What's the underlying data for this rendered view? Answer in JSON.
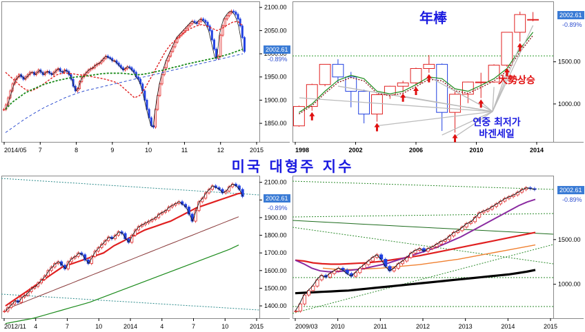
{
  "title_center": "미국 대형주 지수",
  "colors": {
    "up": "#e02020",
    "down": "#2040e0",
    "ma_red": "#e02020",
    "ma_green": "#1a8a1a",
    "ma_blue": "#3050d0",
    "price_box": "#3a7bd5",
    "title": "#1a1ae0",
    "annot_red": "#e01010"
  },
  "panels": {
    "top_left": {
      "last_price": "2002.61",
      "change": "-0.89%",
      "y_ticks": [
        "2100.00",
        "2050.00",
        "2000.00",
        "1950.00",
        "1900.00",
        "1850.00"
      ],
      "x_ticks": [
        "2014/05",
        "7",
        "8",
        "9",
        "10",
        "11",
        "12",
        "2015"
      ]
    },
    "top_right": {
      "title": "年棒",
      "last_price": "2002.61",
      "change": "-0.89%",
      "y_ticks": [
        "1500.00",
        "1000.00"
      ],
      "x_ticks": [
        "1998",
        "2002",
        "2006",
        "2010",
        "2014"
      ],
      "annotation_lows": "연중 최저가\n바겐세일",
      "annotation_trend": "大勢상승"
    },
    "bottom_left": {
      "last_price": "2002.61",
      "change": "-0.89%",
      "y_ticks": [
        "2100.00",
        "2000.00",
        "1900.00",
        "1800.00",
        "1700.00",
        "1600.00",
        "1500.00",
        "1400.00"
      ],
      "x_ticks": [
        "2012/11",
        "4",
        "7",
        "10",
        "2014",
        "4",
        "7",
        "10",
        "2015"
      ]
    },
    "bottom_right": {
      "last_price": "2002.61",
      "change": "-0.89%",
      "y_ticks": [
        "1500.00",
        "1000.00"
      ],
      "x_ticks": [
        "2009/03",
        "2010",
        "2011",
        "2012",
        "2013",
        "2014",
        "2015"
      ]
    }
  },
  "chart_data": [
    {
      "type": "line",
      "name": "top_left",
      "ylim": [
        1810,
        2110
      ],
      "close": [
        1880,
        1890,
        1905,
        1920,
        1935,
        1945,
        1950,
        1955,
        1950,
        1945,
        1950,
        1955,
        1960,
        1960,
        1955,
        1960,
        1965,
        1960,
        1955,
        1960,
        1962,
        1958,
        1955,
        1960,
        1965,
        1968,
        1962,
        1960,
        1965,
        1962,
        1955,
        1945,
        1930,
        1920,
        1925,
        1940,
        1950,
        1955,
        1960,
        1965,
        1968,
        1970,
        1975,
        1978,
        1980,
        1985,
        1990,
        1995,
        1992,
        1990,
        1985,
        1985,
        1980,
        1975,
        1970,
        1965,
        1968,
        1972,
        1970,
        1965,
        1960,
        1950,
        1945,
        1935,
        1920,
        1900,
        1880,
        1862,
        1845,
        1842,
        1880,
        1910,
        1935,
        1955,
        1970,
        1985,
        1995,
        2005,
        2015,
        2025,
        2035,
        2040,
        2045,
        2050,
        2055,
        2060,
        2065,
        2070,
        2068,
        2065,
        2070,
        2075,
        2072,
        2068,
        2060,
        2050,
        2030,
        2010,
        1990,
        1995,
        2040,
        2060,
        2075,
        2082,
        2088,
        2092,
        2090,
        2085,
        2075,
        2060,
        2035,
        2005
      ],
      "ma_red": [
        1960,
        1950,
        1940,
        1930,
        1922,
        1920,
        1925,
        1932,
        1940,
        1948,
        1955,
        1958,
        1958,
        1957,
        1955,
        1954,
        1952,
        1950,
        1948,
        1946,
        1943,
        1940,
        1935,
        1925,
        1915,
        1905,
        1910,
        1925,
        1945,
        1965,
        1985,
        2005,
        2020,
        2030,
        2040,
        2048,
        2055,
        2060,
        2063,
        2060,
        2055,
        2050,
        2055,
        2062,
        2068,
        2070,
        2060
      ],
      "ma_green": [
        1880,
        1895,
        1905,
        1915,
        1922,
        1928,
        1934,
        1938,
        1942,
        1945,
        1948,
        1950,
        1951,
        1953,
        1955,
        1957,
        1958,
        1958,
        1958,
        1957,
        1955,
        1955,
        1957,
        1960,
        1963,
        1966,
        1970,
        1973,
        1977,
        1980,
        1983,
        1986,
        1989,
        1992,
        1996,
        2000,
        2005,
        2010
      ],
      "ma_blue": [
        1830,
        1845,
        1860,
        1873,
        1885,
        1895,
        1905,
        1913,
        1920,
        1925,
        1930,
        1935,
        1940,
        1945,
        1950,
        1955,
        1960,
        1965,
        1970,
        1975,
        1980,
        1985,
        1990,
        1995,
        2000
      ]
    },
    {
      "type": "bar",
      "name": "top_right_yearly",
      "ylim": [
        550,
        2200
      ],
      "categories": [
        "1997",
        "1998",
        "1999",
        "2000",
        "2001",
        "2002",
        "2003",
        "2004",
        "2005",
        "2006",
        "2007",
        "2008",
        "2009",
        "2010",
        "2011",
        "2012",
        "2013",
        "2014",
        "2015"
      ],
      "open": [
        740,
        970,
        1230,
        1470,
        1320,
        1150,
        880,
        1110,
        1210,
        1250,
        1420,
        1470,
        900,
        1115,
        1260,
        1260,
        1460,
        1850,
        2000
      ],
      "close": [
        970,
        1230,
        1470,
        1320,
        1150,
        880,
        1110,
        1210,
        1250,
        1420,
        1470,
        900,
        1115,
        1260,
        1260,
        1460,
        1850,
        2060,
        2002
      ],
      "high": [
        980,
        1240,
        1470,
        1530,
        1380,
        1170,
        1120,
        1215,
        1275,
        1430,
        1580,
        1480,
        1160,
        1265,
        1370,
        1470,
        1850,
        2095,
        2090
      ],
      "low": [
        730,
        920,
        1210,
        1260,
        960,
        770,
        790,
        1060,
        1140,
        1220,
        1370,
        680,
        660,
        1010,
        1070,
        1250,
        1440,
        1740,
        1980
      ],
      "ma": [
        900,
        1000,
        1150,
        1280,
        1340,
        1300,
        1150,
        1120,
        1150,
        1230,
        1320,
        1300,
        1180,
        1150,
        1220,
        1300,
        1420,
        1650,
        1850
      ]
    },
    {
      "type": "line",
      "name": "bottom_left",
      "ylim": [
        1330,
        2130
      ],
      "close": [
        1370,
        1390,
        1410,
        1430,
        1420,
        1450,
        1460,
        1480,
        1500,
        1510,
        1530,
        1550,
        1570,
        1600,
        1620,
        1640,
        1650,
        1630,
        1610,
        1650,
        1670,
        1680,
        1700,
        1690,
        1660,
        1640,
        1680,
        1710,
        1730,
        1750,
        1770,
        1790,
        1780,
        1800,
        1820,
        1810,
        1780,
        1760,
        1800,
        1830,
        1850,
        1860,
        1870,
        1880,
        1890,
        1900,
        1920,
        1930,
        1940,
        1960,
        1970,
        1980,
        1990,
        1975,
        1960,
        1920,
        1880,
        1940,
        1990,
        2010,
        2040,
        2060,
        2080,
        2070,
        2060,
        2040,
        2050,
        2075,
        2090,
        2080,
        2060,
        2020
      ],
      "ma_red": [
        1400,
        1420,
        1440,
        1460,
        1480,
        1500,
        1520,
        1540,
        1560,
        1580,
        1600,
        1620,
        1630,
        1640,
        1650,
        1660,
        1670,
        1680,
        1690,
        1700,
        1720,
        1740,
        1755,
        1770,
        1785,
        1800,
        1815,
        1830,
        1840,
        1850,
        1860,
        1870,
        1880,
        1895,
        1910,
        1925,
        1940,
        1955,
        1965,
        1975,
        1985,
        1995,
        2005,
        2015,
        2025,
        2035,
        2040
      ],
      "ma_brown": [
        1380,
        1395,
        1410,
        1425,
        1440,
        1455,
        1470,
        1485,
        1500,
        1515,
        1530,
        1545,
        1560,
        1575,
        1590,
        1605,
        1620,
        1635,
        1650,
        1665,
        1680,
        1695,
        1710,
        1725,
        1740,
        1755,
        1770,
        1785,
        1800,
        1815,
        1830,
        1845,
        1860,
        1875,
        1890,
        1905
      ],
      "ma_green": [
        1300,
        1310,
        1320,
        1330,
        1345,
        1360,
        1375,
        1390,
        1405,
        1420,
        1440,
        1460,
        1480,
        1500,
        1520,
        1540,
        1560,
        1580,
        1600,
        1620,
        1640,
        1660,
        1680,
        1700,
        1720,
        1745
      ]
    },
    {
      "type": "line",
      "name": "bottom_right",
      "ylim": [
        620,
        2200
      ],
      "close": [
        700,
        780,
        880,
        930,
        980,
        1050,
        1100,
        1080,
        1120,
        1150,
        1180,
        1160,
        1120,
        1090,
        1130,
        1180,
        1220,
        1260,
        1300,
        1330,
        1280,
        1200,
        1150,
        1180,
        1230,
        1260,
        1300,
        1350,
        1380,
        1400,
        1370,
        1400,
        1420,
        1450,
        1480,
        1500,
        1540,
        1580,
        1600,
        1640,
        1680,
        1700,
        1750,
        1800,
        1820,
        1840,
        1870,
        1900,
        1930,
        1960,
        1980,
        2000,
        2030,
        2060,
        2080,
        2070,
        2060
      ],
      "ma_black": [
        900,
        1000,
        1080,
        1120,
        1150,
        1170,
        1190,
        1200,
        1210,
        1230,
        1260,
        1290,
        1320,
        1360,
        1400,
        1450,
        1500,
        1550,
        1600,
        1650,
        1700,
        1750,
        1800,
        1850,
        1900,
        1960,
        2010,
        2050
      ],
      "ma_purple": [
        1270,
        1230,
        1180,
        1150,
        1140,
        1140,
        1150,
        1160,
        1170,
        1190,
        1210,
        1230,
        1260,
        1290,
        1320,
        1350,
        1380,
        1410,
        1450,
        1490,
        1530,
        1580,
        1630,
        1680,
        1730,
        1780,
        1830,
        1880,
        1920,
        1950
      ],
      "ma_red": [
        1270,
        1260,
        1240,
        1230,
        1225,
        1225,
        1230,
        1235,
        1240,
        1250,
        1260,
        1275,
        1290,
        1305,
        1320,
        1340,
        1360,
        1380,
        1400,
        1420,
        1440,
        1460,
        1480,
        1500,
        1520,
        1540,
        1560,
        1580
      ],
      "ma_orange": [
        1180,
        1170,
        1165,
        1165,
        1170,
        1175,
        1180,
        1190,
        1200,
        1210,
        1220,
        1235,
        1250,
        1265,
        1280,
        1300,
        1320,
        1340,
        1360,
        1380,
        1400,
        1420,
        1440
      ],
      "ma_thick": [
        900,
        905,
        910,
        915,
        920,
        925,
        930,
        940,
        950,
        960,
        970,
        980,
        990,
        1000,
        1010,
        1020,
        1030,
        1040,
        1050,
        1060,
        1070,
        1080,
        1090,
        1100,
        1110,
        1125,
        1140,
        1160
      ]
    }
  ]
}
